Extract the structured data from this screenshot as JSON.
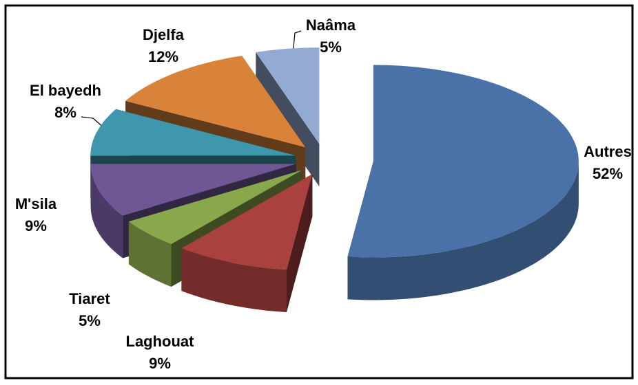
{
  "chart_data": {
    "type": "pie3d",
    "categories": [
      "Autres",
      "Laghouat",
      "Tiaret",
      "M'sila",
      "El bayedh",
      "Djelfa",
      "Naâma"
    ],
    "values": [
      52,
      9,
      5,
      9,
      8,
      12,
      5
    ],
    "value_labels": [
      "52%",
      "9%",
      "5%",
      "9%",
      "8%",
      "12%",
      "5%"
    ],
    "colors": [
      "#4a72a8",
      "#a9413e",
      "#89a74b",
      "#6f5695",
      "#3e97ad",
      "#d9833a",
      "#93aad3"
    ]
  }
}
